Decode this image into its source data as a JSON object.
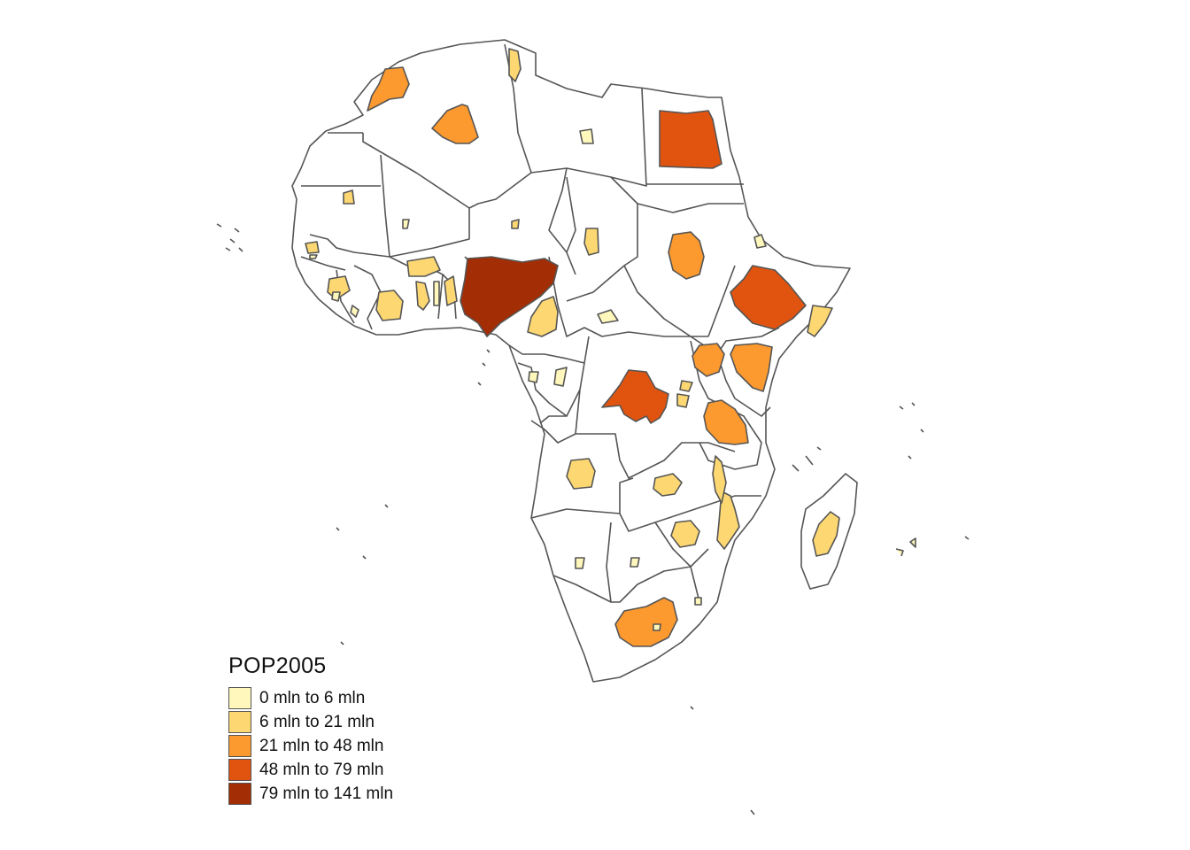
{
  "legend": {
    "title": "POP2005",
    "classes": [
      {
        "label": "0 mln to 6 mln",
        "color": "#fff7bc"
      },
      {
        "label": "6 mln to 21 mln",
        "color": "#fdd872"
      },
      {
        "label": "21 mln to 48 mln",
        "color": "#fc992f"
      },
      {
        "label": "48 mln to 79 mln",
        "color": "#e05410"
      },
      {
        "label": "79 mln to 141 mln",
        "color": "#a32d04"
      }
    ]
  },
  "countries": [
    {
      "name": "Nigeria",
      "class": 4
    },
    {
      "name": "Egypt",
      "class": 3
    },
    {
      "name": "Ethiopia",
      "class": 3
    },
    {
      "name": "Democratic Republic of the Congo",
      "class": 3
    },
    {
      "name": "South Africa",
      "class": 2
    },
    {
      "name": "Sudan",
      "class": 2
    },
    {
      "name": "Morocco",
      "class": 2
    },
    {
      "name": "Algeria",
      "class": 2
    },
    {
      "name": "Tanzania",
      "class": 2
    },
    {
      "name": "Kenya",
      "class": 2
    },
    {
      "name": "Uganda",
      "class": 2
    },
    {
      "name": "Ghana",
      "class": 1
    },
    {
      "name": "Cote d'Ivoire",
      "class": 1
    },
    {
      "name": "Cameroon",
      "class": 1
    },
    {
      "name": "Madagascar",
      "class": 1
    },
    {
      "name": "Mozambique",
      "class": 1
    },
    {
      "name": "Angola",
      "class": 1
    },
    {
      "name": "Zimbabwe",
      "class": 1
    },
    {
      "name": "Tunisia",
      "class": 1
    },
    {
      "name": "Chad",
      "class": 1
    },
    {
      "name": "Burkina Faso",
      "class": 1
    },
    {
      "name": "Malawi",
      "class": 1
    },
    {
      "name": "Zambia",
      "class": 1
    },
    {
      "name": "Somalia",
      "class": 1
    },
    {
      "name": "Guinea",
      "class": 1
    },
    {
      "name": "Rwanda",
      "class": 1
    },
    {
      "name": "Burundi",
      "class": 1
    },
    {
      "name": "Benin",
      "class": 1
    },
    {
      "name": "Senegal",
      "class": 1
    },
    {
      "name": "Mali",
      "class": 1
    },
    {
      "name": "Niger",
      "class": 1
    },
    {
      "name": "Libya",
      "class": 0
    },
    {
      "name": "Eritrea",
      "class": 0
    },
    {
      "name": "Namibia",
      "class": 0
    },
    {
      "name": "Botswana",
      "class": 0
    },
    {
      "name": "Central African Republic",
      "class": 0
    },
    {
      "name": "Gabon",
      "class": 0
    },
    {
      "name": "Republic of the Congo",
      "class": 0
    },
    {
      "name": "Togo",
      "class": 0
    },
    {
      "name": "Mauritania",
      "class": 0
    },
    {
      "name": "Sierra Leone",
      "class": 0
    },
    {
      "name": "Liberia",
      "class": 0
    },
    {
      "name": "Gambia",
      "class": 0
    },
    {
      "name": "Lesotho",
      "class": 0
    },
    {
      "name": "Swaziland",
      "class": 0
    },
    {
      "name": "Comoros",
      "class": 0
    }
  ]
}
